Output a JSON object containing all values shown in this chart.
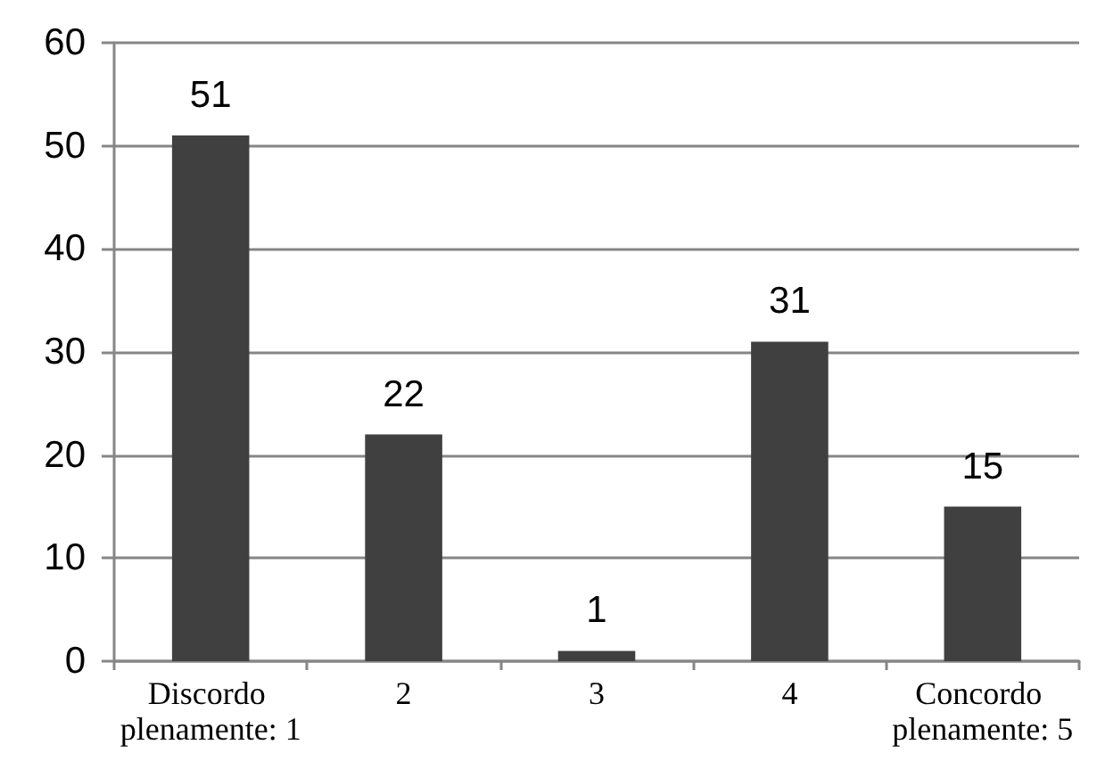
{
  "chart_data": {
    "type": "bar",
    "categories": [
      "Discordo plenamente: 1",
      "2",
      "3",
      "4",
      "Concordo plenamente: 5"
    ],
    "values": [
      51,
      22,
      1,
      31,
      15
    ],
    "color": "#404040",
    "ylim": [
      0,
      60
    ],
    "yticks": [
      0,
      10,
      20,
      30,
      40,
      50,
      60
    ],
    "grid": "y",
    "data_labels": true
  }
}
